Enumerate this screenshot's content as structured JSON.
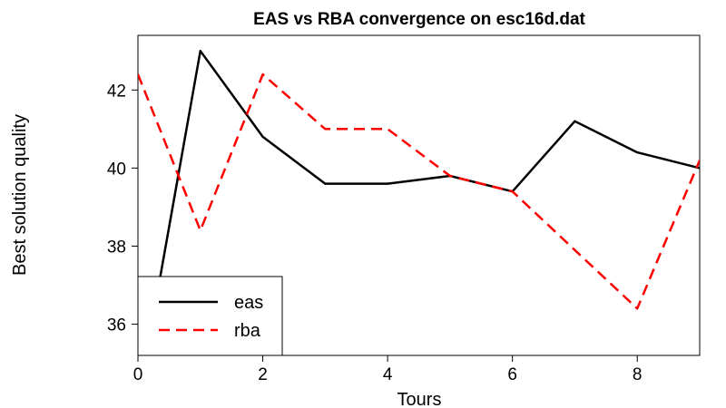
{
  "chart_data": {
    "type": "line",
    "title": "EAS vs RBA convergence on esc16d.dat",
    "xlabel": "Tours",
    "ylabel": "Best solution quality",
    "xlim": [
      0,
      9
    ],
    "ylim": [
      35.2,
      43.4
    ],
    "x_ticks": [
      "0",
      "2",
      "4",
      "6",
      "8"
    ],
    "y_ticks": [
      "36",
      "38",
      "40",
      "42"
    ],
    "x": [
      0,
      1,
      2,
      3,
      4,
      5,
      6,
      7,
      8,
      9
    ],
    "series": [
      {
        "name": "eas",
        "color": "#000000",
        "dash": "solid",
        "values": [
          34.0,
          43.0,
          40.8,
          39.6,
          39.6,
          39.8,
          39.4,
          41.2,
          40.4,
          40.0
        ]
      },
      {
        "name": "rba",
        "color": "#ff0000",
        "dash": "dashed",
        "values": [
          42.4,
          38.4,
          42.4,
          41.0,
          41.0,
          39.8,
          39.4,
          37.9,
          36.4,
          40.2
        ]
      }
    ],
    "legend": {
      "position": "bottom-left"
    },
    "grid": false
  }
}
